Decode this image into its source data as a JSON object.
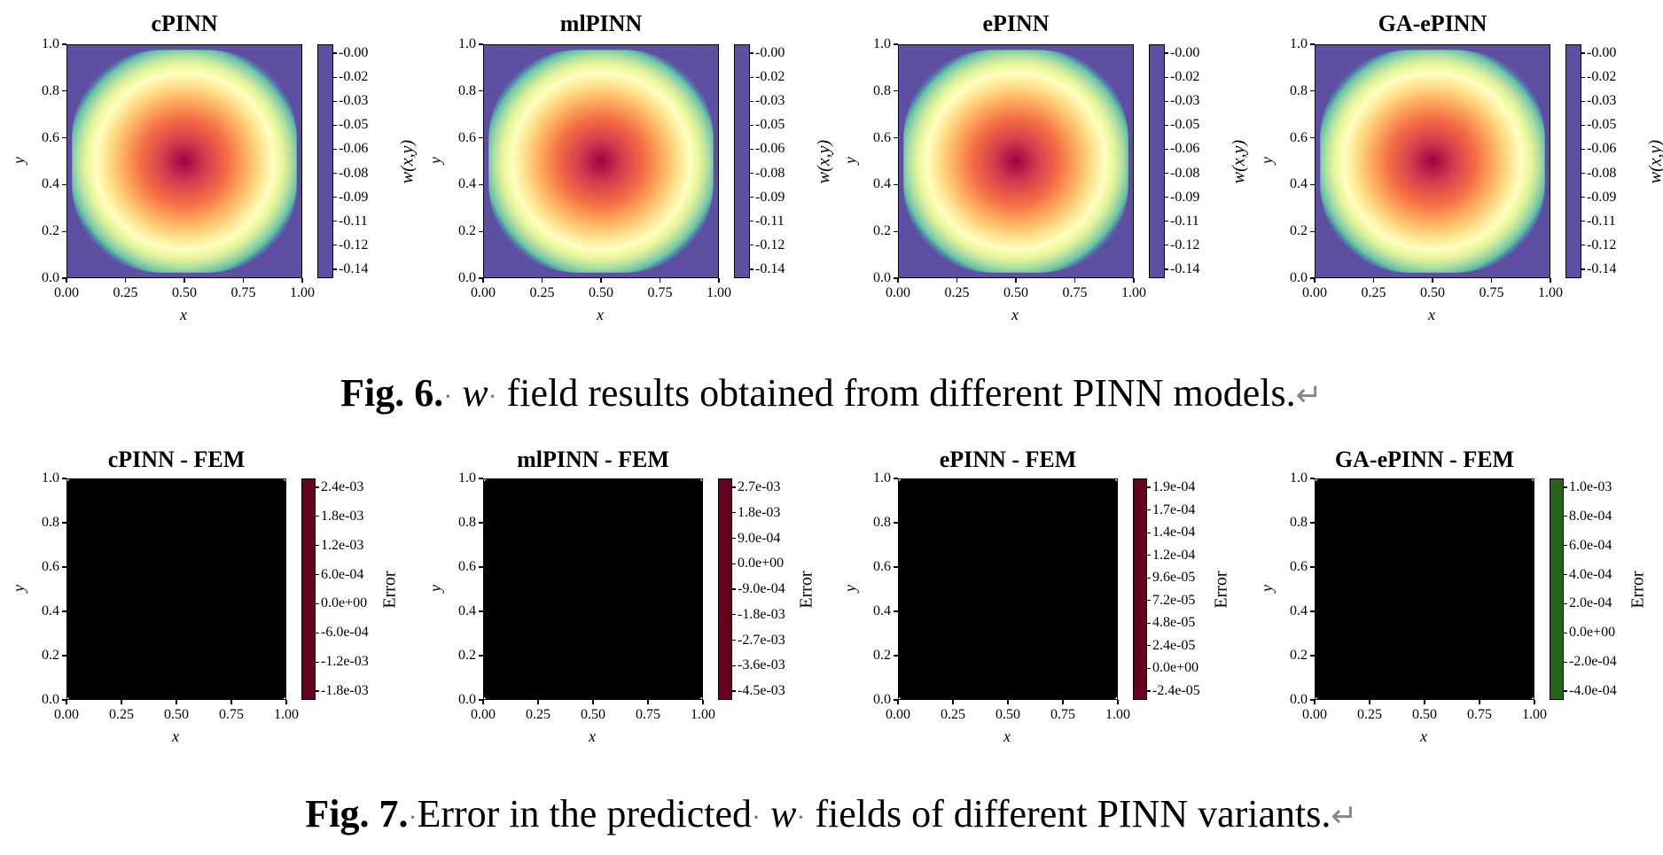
{
  "row1": {
    "cbar_label": "w(x,y)",
    "cbar_ticks": [
      "-0.00",
      "-0.02",
      "-0.03",
      "-0.05",
      "-0.06",
      "-0.08",
      "-0.09",
      "-0.11",
      "-0.12",
      "-0.14"
    ],
    "panels": [
      {
        "title": "cPINN"
      },
      {
        "title": "mlPINN"
      },
      {
        "title": "ePINN"
      },
      {
        "title": "GA-ePINN"
      }
    ]
  },
  "row2": {
    "cbar_label": "Error",
    "panels": [
      {
        "title": "cPINN - FEM",
        "cmap": "RdBu",
        "cbar_ticks": [
          "2.4e-03",
          "1.8e-03",
          "1.2e-03",
          "6.0e-04",
          "0.0e+00",
          "-6.0e-04",
          "-1.2e-03",
          "-1.8e-03"
        ]
      },
      {
        "title": "mlPINN - FEM",
        "cmap": "RdBu",
        "cbar_ticks": [
          "2.7e-03",
          "1.8e-03",
          "9.0e-04",
          "0.0e+00",
          "-9.0e-04",
          "-1.8e-03",
          "-2.7e-03",
          "-3.6e-03",
          "-4.5e-03"
        ]
      },
      {
        "title": "ePINN - FEM",
        "cmap": "RdBu",
        "cbar_ticks": [
          "1.9e-04",
          "1.7e-04",
          "1.4e-04",
          "1.2e-04",
          "9.6e-05",
          "7.2e-05",
          "4.8e-05",
          "2.4e-05",
          "0.0e+00",
          "-2.4e-05"
        ]
      },
      {
        "title": "GA-ePINN - FEM",
        "cmap": "PiYG",
        "cbar_ticks": [
          "1.0e-03",
          "8.0e-04",
          "6.0e-04",
          "4.0e-04",
          "2.0e-04",
          "0.0e+00",
          "-2.0e-04",
          "-4.0e-04"
        ]
      }
    ]
  },
  "axes": {
    "xlabel": "x",
    "ylabel": "y",
    "xticks": [
      "0.00",
      "0.25",
      "0.50",
      "0.75",
      "1.00"
    ],
    "yticks": [
      "0.0",
      "0.2",
      "0.4",
      "0.6",
      "0.8",
      "1.0"
    ]
  },
  "captions": {
    "fig6": {
      "label": "Fig. 6.",
      "var": "w",
      "text": "field results obtained from different PINN models."
    },
    "fig7": {
      "label": "Fig. 7.",
      "text_a": "Error in the predicted",
      "var": "w",
      "text_b": "fields of different PINN variants."
    }
  }
}
